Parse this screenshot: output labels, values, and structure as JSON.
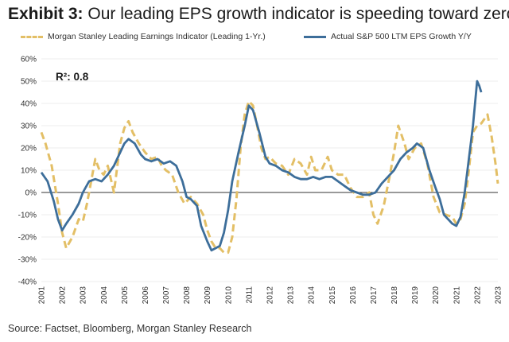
{
  "title": {
    "exhibit": "Exhibit 3:",
    "text": "Our leading EPS growth indicator is speeding toward zero"
  },
  "legend": {
    "indicator": "Morgan Stanley Leading Earnings Indicator (Leading 1-Yr.)",
    "actual": "Actual S&P 500 LTM EPS Growth Y/Y"
  },
  "annotation": "R²: 0.8",
  "source": "Source: Factset, Bloomberg, Morgan Stanley Research",
  "colors": {
    "indicator": "#E3BF66",
    "actual": "#3D6E9A",
    "grid": "#dddddd",
    "zero": "#333333"
  },
  "chart_data": {
    "type": "line",
    "title": "Our leading EPS growth indicator is speeding toward zero",
    "xlabel": "",
    "ylabel": "",
    "xlim": [
      2001,
      2023
    ],
    "ylim": [
      -40,
      60
    ],
    "yticks": [
      -40,
      -30,
      -20,
      -10,
      0,
      10,
      20,
      30,
      40,
      50,
      60
    ],
    "ytick_labels": [
      "-40%",
      "-30%",
      "-20%",
      "-10%",
      "0%",
      "10%",
      "20%",
      "30%",
      "40%",
      "50%",
      "60%"
    ],
    "xtick_labels": [
      "2001",
      "2002",
      "2003",
      "2004",
      "2005",
      "2006",
      "2007",
      "2008",
      "2009",
      "2010",
      "2011",
      "2012",
      "2013",
      "2014",
      "2015",
      "2016",
      "2017",
      "2018",
      "2019",
      "2020",
      "2021",
      "2022",
      "2023"
    ],
    "legend_position": "top",
    "series": [
      {
        "name": "Morgan Stanley Leading Earnings Indicator (Leading 1-Yr.)",
        "style": "dashed",
        "x": [
          2001.0,
          2001.2,
          2001.5,
          2001.8,
          2002.0,
          2002.2,
          2002.5,
          2002.8,
          2003.0,
          2003.2,
          2003.4,
          2003.6,
          2003.8,
          2004.0,
          2004.2,
          2004.5,
          2004.8,
          2005.0,
          2005.2,
          2005.4,
          2005.7,
          2006.0,
          2006.3,
          2006.6,
          2006.8,
          2007.0,
          2007.3,
          2007.6,
          2007.9,
          2008.2,
          2008.5,
          2008.8,
          2009.0,
          2009.2,
          2009.4,
          2009.6,
          2009.8,
          2010.0,
          2010.2,
          2010.4,
          2010.6,
          2010.8,
          2011.0,
          2011.2,
          2011.4,
          2011.6,
          2011.8,
          2012.0,
          2012.3,
          2012.6,
          2012.9,
          2013.2,
          2013.5,
          2013.8,
          2014.0,
          2014.2,
          2014.5,
          2014.8,
          2015.0,
          2015.3,
          2015.6,
          2015.9,
          2016.2,
          2016.5,
          2016.8,
          2017.0,
          2017.2,
          2017.5,
          2017.8,
          2018.0,
          2018.2,
          2018.5,
          2018.7,
          2019.0,
          2019.3,
          2019.6,
          2019.9,
          2020.2,
          2020.5,
          2020.8,
          2021.0,
          2021.2,
          2021.4,
          2021.6,
          2021.8,
          2022.0,
          2022.2,
          2022.5,
          2022.7,
          2022.9,
          2023.0
        ],
        "y": [
          27,
          22,
          12,
          -5,
          -18,
          -25,
          -20,
          -12,
          -13,
          -5,
          5,
          15,
          10,
          8,
          12,
          0,
          22,
          29,
          32,
          27,
          22,
          18,
          15,
          16,
          12,
          10,
          8,
          0,
          -5,
          -2,
          -5,
          -10,
          -17,
          -22,
          -25,
          -25,
          -27,
          -27,
          -20,
          -3,
          20,
          35,
          41,
          39,
          30,
          20,
          15,
          16,
          13,
          12,
          8,
          15,
          13,
          8,
          16,
          10,
          10,
          16,
          10,
          8,
          8,
          2,
          -2,
          -2,
          0,
          -10,
          -14,
          -6,
          8,
          18,
          30,
          22,
          15,
          20,
          22,
          13,
          -2,
          -9,
          -10,
          -11,
          -14,
          -12,
          -5,
          10,
          27,
          30,
          31,
          35,
          25,
          12,
          4
        ]
      },
      {
        "name": "Actual S&P 500 LTM EPS Growth Y/Y",
        "style": "solid",
        "x": [
          2001.0,
          2001.3,
          2001.6,
          2001.8,
          2002.0,
          2002.2,
          2002.5,
          2002.8,
          2003.0,
          2003.3,
          2003.6,
          2003.9,
          2004.2,
          2004.5,
          2004.8,
          2005.0,
          2005.2,
          2005.5,
          2005.8,
          2006.0,
          2006.3,
          2006.6,
          2006.9,
          2007.2,
          2007.5,
          2007.8,
          2008.0,
          2008.2,
          2008.5,
          2008.7,
          2009.0,
          2009.2,
          2009.4,
          2009.6,
          2009.8,
          2010.0,
          2010.2,
          2010.5,
          2010.8,
          2011.0,
          2011.2,
          2011.5,
          2011.8,
          2012.0,
          2012.3,
          2012.6,
          2012.9,
          2013.2,
          2013.5,
          2013.8,
          2014.1,
          2014.4,
          2014.7,
          2015.0,
          2015.3,
          2015.6,
          2015.9,
          2016.2,
          2016.5,
          2016.8,
          2017.1,
          2017.4,
          2017.7,
          2018.0,
          2018.3,
          2018.6,
          2018.9,
          2019.1,
          2019.4,
          2019.7,
          2020.0,
          2020.2,
          2020.4,
          2020.6,
          2020.8,
          2021.0,
          2021.2,
          2021.4,
          2021.6,
          2021.8,
          2021.9,
          2022.0,
          2022.1,
          2022.2
        ],
        "y": [
          9,
          5,
          -4,
          -12,
          -17,
          -14,
          -10,
          -5,
          0,
          5,
          6,
          5,
          8,
          12,
          18,
          22,
          24,
          22,
          17,
          15,
          14,
          15,
          13,
          14,
          12,
          5,
          -2,
          -3,
          -6,
          -15,
          -22,
          -26,
          -25,
          -24,
          -18,
          -8,
          5,
          18,
          30,
          39,
          37,
          27,
          16,
          13,
          12,
          10,
          9,
          7,
          6,
          6,
          7,
          6,
          7,
          7,
          5,
          3,
          1,
          0,
          -1,
          -1,
          0,
          4,
          7,
          10,
          15,
          18,
          20,
          22,
          20,
          10,
          2,
          -3,
          -10,
          -12,
          -14,
          -15,
          -11,
          0,
          15,
          30,
          40,
          50,
          48,
          45
        ]
      }
    ]
  }
}
